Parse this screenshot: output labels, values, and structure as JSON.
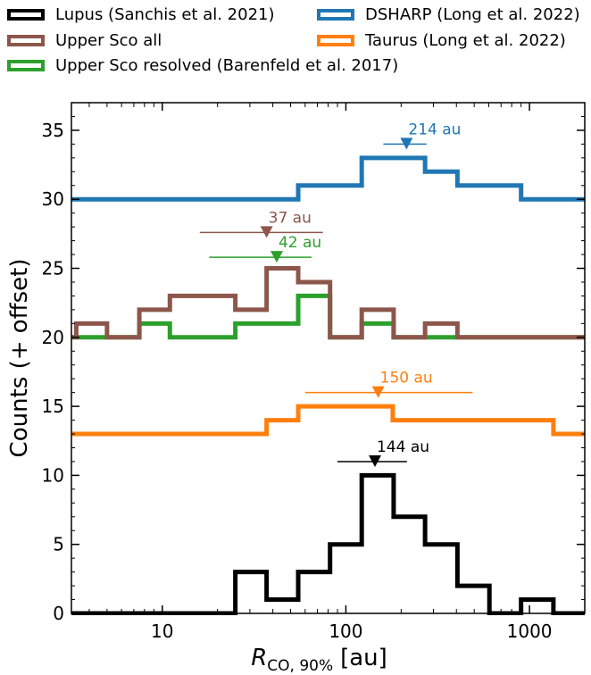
{
  "chart_data": {
    "type": "step-histogram",
    "xscale": "log",
    "xlabel_main": "R",
    "xlabel_sub": "CO, 90%",
    "xlabel_unit": "[au]",
    "ylabel": "Counts (+ offset)",
    "xlim": [
      3.2,
      2000
    ],
    "ylim": [
      0,
      37
    ],
    "xticks": [
      {
        "value": 10,
        "label": "10"
      },
      {
        "value": 100,
        "label": "100"
      },
      {
        "value": 1000,
        "label": "1000"
      }
    ],
    "yticks": [
      {
        "value": 0,
        "label": "0"
      },
      {
        "value": 5,
        "label": "5"
      },
      {
        "value": 10,
        "label": "10"
      },
      {
        "value": 15,
        "label": "15"
      },
      {
        "value": 20,
        "label": "20"
      },
      {
        "value": 25,
        "label": "25"
      },
      {
        "value": 30,
        "label": "30"
      },
      {
        "value": 35,
        "label": "35"
      }
    ],
    "series": [
      {
        "name": "Lupus (Sanchis et al. 2021)",
        "color": "#000000",
        "offset": 0,
        "edges": [
          3.2,
          25,
          37,
          55,
          82,
          122,
          182,
          270,
          405,
          605,
          900,
          1350,
          2000
        ],
        "counts": [
          0,
          3,
          1,
          3,
          5,
          10,
          7,
          5,
          2,
          0,
          1,
          0
        ],
        "median": {
          "value": 144,
          "label": "144 au",
          "low": 90,
          "high": 215,
          "y": 11
        }
      },
      {
        "name": "Taurus (Long et al. 2022)",
        "color": "#ff7f0e",
        "offset": 13,
        "edges": [
          3.2,
          37,
          55,
          180,
          1350,
          2000
        ],
        "counts": [
          0,
          1,
          2,
          1,
          0
        ],
        "median": {
          "value": 150,
          "label": "150 au",
          "low": 60,
          "high": 490,
          "y": 16
        }
      },
      {
        "name": "Upper Sco resolved (Barenfeld et al. 2017)",
        "color": "#2ca02c",
        "offset": 20,
        "edges": [
          3.2,
          7.5,
          11,
          25,
          55,
          82,
          122,
          182,
          2000
        ],
        "counts": [
          0,
          1,
          0,
          1,
          3,
          0,
          1,
          0
        ],
        "median": {
          "value": 42,
          "label": "42 au",
          "low": 18,
          "high": 65,
          "y": 25.8
        }
      },
      {
        "name": "Upper Sco all",
        "color": "#8c564b",
        "offset": 20,
        "edges": [
          3.2,
          3.4,
          5,
          7.5,
          11,
          25,
          37,
          55,
          82,
          122,
          182,
          270,
          405,
          2000
        ],
        "counts": [
          0,
          1,
          0,
          2,
          3,
          2,
          5,
          4,
          0,
          2,
          0,
          1,
          0
        ],
        "median": {
          "value": 37,
          "label": "37 au",
          "low": 16,
          "high": 75,
          "y": 27.6
        }
      },
      {
        "name": "DSHARP (Long et al. 2022)",
        "color": "#1f77b4",
        "offset": 30,
        "edges": [
          3.2,
          55,
          122,
          270,
          405,
          900,
          2000
        ],
        "counts": [
          0,
          1,
          3,
          2,
          1,
          0
        ],
        "median": {
          "value": 214,
          "label": "214 au",
          "low": 160,
          "high": 275,
          "y": 34
        }
      }
    ],
    "legend": [
      {
        "label": "Lupus (Sanchis et al. 2021)",
        "color": "#000000"
      },
      {
        "label": "DSHARP (Long et al. 2022)",
        "color": "#1f77b4"
      },
      {
        "label": "Upper Sco all",
        "color": "#8c564b"
      },
      {
        "label": "Taurus (Long et al. 2022)",
        "color": "#ff7f0e"
      },
      {
        "label": "Upper Sco resolved (Barenfeld et al. 2017)",
        "color": "#2ca02c"
      }
    ]
  }
}
